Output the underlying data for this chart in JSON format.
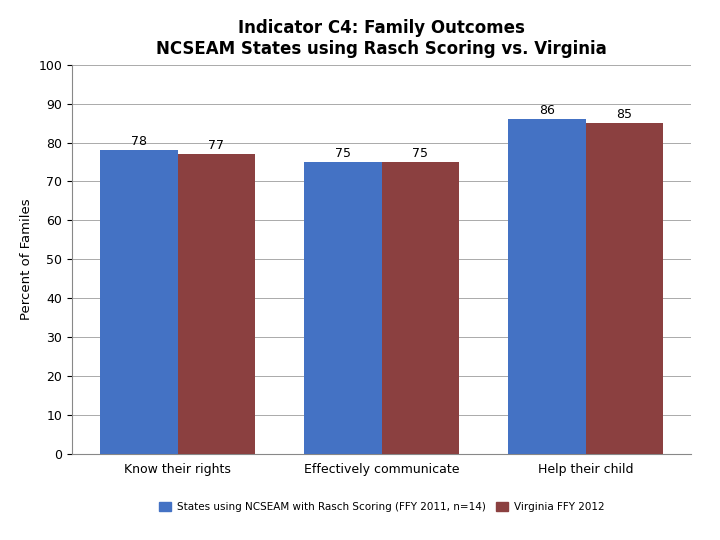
{
  "title_line1": "Indicator C4: Family Outcomes",
  "title_line2": "NCSEAM States using Rasch Scoring vs. Virginia",
  "categories": [
    "Know their rights",
    "Effectively communicate",
    "Help their child"
  ],
  "blue_values": [
    78,
    75,
    86
  ],
  "red_values": [
    77,
    75,
    85
  ],
  "blue_color": "#4472C4",
  "red_color": "#8B4040",
  "ylabel": "Percent of Familes",
  "ylim": [
    0,
    100
  ],
  "yticks": [
    0,
    10,
    20,
    30,
    40,
    50,
    60,
    70,
    80,
    90,
    100
  ],
  "legend_blue": "States using NCSEAM with Rasch Scoring (FFY 2011, n=14)",
  "legend_red": "Virginia FFY 2012",
  "legend_blue_sub": "",
  "legend_red_sub": "",
  "bar_width": 0.38,
  "title_fontsize": 12,
  "axis_fontsize": 9.5,
  "tick_fontsize": 9,
  "value_fontsize": 9,
  "background_color": "#FFFFFF",
  "grid_color": "#AAAAAA",
  "border_color": "#999999"
}
